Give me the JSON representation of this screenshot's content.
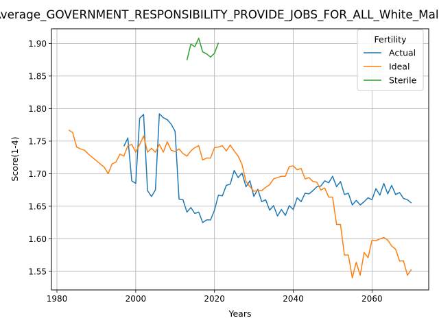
{
  "chart_data": {
    "type": "line",
    "title": "Average_GOVERNMENT_RESPONSIBILITY_PROVIDE_JOBS_FOR_ALL_White_Male",
    "xlabel": "Years",
    "ylabel": "Score(1-4)",
    "xlim": [
      1978.6,
      2074.4
    ],
    "ylim": [
      1.5215,
      1.9225
    ],
    "xticks": [
      1980,
      2000,
      2020,
      2040,
      2060
    ],
    "yticks": [
      1.55,
      1.6,
      1.65,
      1.7,
      1.75,
      1.8,
      1.85,
      1.9
    ],
    "ytick_labels": [
      "1.55",
      "1.60",
      "1.65",
      "1.70",
      "1.75",
      "1.80",
      "1.85",
      "1.90"
    ],
    "grid": true,
    "legend": {
      "title": "Fertility",
      "position": "top-right"
    },
    "series": [
      {
        "name": "Actual",
        "color": "#1f77b4",
        "x": [
          1997,
          1998,
          1999,
          2000,
          2001,
          2002,
          2003,
          2004,
          2005,
          2006,
          2007,
          2008,
          2009,
          2010,
          2011,
          2012,
          2013,
          2014,
          2015,
          2016,
          2017,
          2018,
          2019,
          2020,
          2021,
          2022,
          2023,
          2024,
          2025,
          2026,
          2027,
          2028,
          2029,
          2030,
          2031,
          2032,
          2033,
          2034,
          2035,
          2036,
          2037,
          2038,
          2039,
          2040,
          2041,
          2042,
          2043,
          2044,
          2045,
          2046,
          2047,
          2048,
          2049,
          2050,
          2051,
          2052,
          2053,
          2054,
          2055,
          2056,
          2057,
          2058,
          2059,
          2060,
          2061,
          2062,
          2063,
          2064,
          2065,
          2066,
          2067,
          2068,
          2069,
          2070
        ],
        "y": [
          1.742,
          1.755,
          1.689,
          1.685,
          1.785,
          1.791,
          1.674,
          1.665,
          1.675,
          1.792,
          1.786,
          1.783,
          1.776,
          1.765,
          1.661,
          1.66,
          1.641,
          1.648,
          1.639,
          1.641,
          1.625,
          1.629,
          1.629,
          1.644,
          1.667,
          1.666,
          1.682,
          1.684,
          1.705,
          1.694,
          1.701,
          1.68,
          1.689,
          1.665,
          1.676,
          1.657,
          1.66,
          1.644,
          1.651,
          1.635,
          1.645,
          1.636,
          1.651,
          1.645,
          1.663,
          1.657,
          1.67,
          1.669,
          1.674,
          1.68,
          1.681,
          1.689,
          1.686,
          1.696,
          1.68,
          1.688,
          1.668,
          1.67,
          1.652,
          1.659,
          1.652,
          1.657,
          1.663,
          1.66,
          1.677,
          1.667,
          1.685,
          1.669,
          1.682,
          1.668,
          1.671,
          1.662,
          1.66,
          1.655
        ]
      },
      {
        "name": "Ideal",
        "color": "#ff7f0e",
        "x": [
          1983,
          1984,
          1985,
          1986,
          1987,
          1988,
          1989,
          1990,
          1991,
          1992,
          1993,
          1994,
          1995,
          1996,
          1997,
          1998,
          1999,
          2000,
          2001,
          2002,
          2003,
          2004,
          2005,
          2006,
          2007,
          2008,
          2009,
          2010,
          2011,
          2012,
          2013,
          2014,
          2015,
          2016,
          2017,
          2018,
          2019,
          2020,
          2021,
          2022,
          2023,
          2024,
          2025,
          2026,
          2027,
          2028,
          2029,
          2030,
          2031,
          2032,
          2033,
          2034,
          2035,
          2036,
          2037,
          2038,
          2039,
          2040,
          2041,
          2042,
          2043,
          2044,
          2045,
          2046,
          2047,
          2048,
          2049,
          2050,
          2051,
          2052,
          2053,
          2054,
          2055,
          2056,
          2057,
          2058,
          2059,
          2060,
          2061,
          2062,
          2063,
          2064,
          2065,
          2066,
          2067,
          2068,
          2069,
          2070
        ],
        "y": [
          1.767,
          1.763,
          1.741,
          1.738,
          1.736,
          1.73,
          1.725,
          1.72,
          1.715,
          1.71,
          1.7,
          1.715,
          1.718,
          1.73,
          1.727,
          1.743,
          1.745,
          1.733,
          1.745,
          1.758,
          1.733,
          1.739,
          1.733,
          1.745,
          1.733,
          1.749,
          1.736,
          1.734,
          1.738,
          1.731,
          1.727,
          1.735,
          1.74,
          1.743,
          1.721,
          1.724,
          1.724,
          1.74,
          1.741,
          1.743,
          1.735,
          1.744,
          1.735,
          1.727,
          1.714,
          1.688,
          1.68,
          1.673,
          1.674,
          1.674,
          1.679,
          1.683,
          1.692,
          1.694,
          1.696,
          1.696,
          1.711,
          1.712,
          1.706,
          1.708,
          1.692,
          1.694,
          1.688,
          1.687,
          1.675,
          1.678,
          1.664,
          1.664,
          1.622,
          1.622,
          1.575,
          1.575,
          1.54,
          1.564,
          1.544,
          1.579,
          1.571,
          1.598,
          1.597,
          1.6,
          1.602,
          1.598,
          1.589,
          1.584,
          1.566,
          1.566,
          1.544,
          1.553
        ]
      },
      {
        "name": "Sterile",
        "color": "#2ca02c",
        "x": [
          2013,
          2014,
          2015,
          2016,
          2017,
          2018,
          2019,
          2020,
          2021
        ],
        "y": [
          1.874,
          1.899,
          1.895,
          1.908,
          1.887,
          1.884,
          1.879,
          1.885,
          1.901
        ]
      }
    ]
  }
}
